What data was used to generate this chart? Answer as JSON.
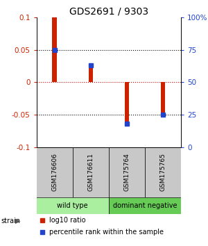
{
  "title": "GDS2691 / 9303",
  "samples": [
    "GSM176606",
    "GSM176611",
    "GSM175764",
    "GSM175765"
  ],
  "log10_ratios": [
    0.1,
    0.025,
    -0.065,
    -0.05
  ],
  "percentile_ranks": [
    75,
    63,
    18,
    25
  ],
  "bar_color_red": "#cc2200",
  "bar_color_blue": "#2244cc",
  "ylim": [
    -0.1,
    0.1
  ],
  "yticks_left": [
    -0.1,
    -0.05,
    0,
    0.05,
    0.1
  ],
  "yticks_right": [
    0,
    25,
    50,
    75,
    100
  ],
  "hlines_y": [
    -0.05,
    0.0,
    0.05
  ],
  "hline_colors": [
    "black",
    "#cc0000",
    "black"
  ],
  "hline_styles": [
    "dotted",
    "dotted",
    "dotted"
  ],
  "bar_width": 0.12,
  "sample_label_color": "#c8c8c8",
  "group_wt_color": "#aaeea0",
  "group_dn_color": "#66cc55",
  "legend_red_label": "log10 ratio",
  "legend_blue_label": "percentile rank within the sample",
  "strain_label": "strain",
  "background_color": "#ffffff",
  "title_fontsize": 10,
  "tick_fontsize": 7.5,
  "legend_fontsize": 7
}
